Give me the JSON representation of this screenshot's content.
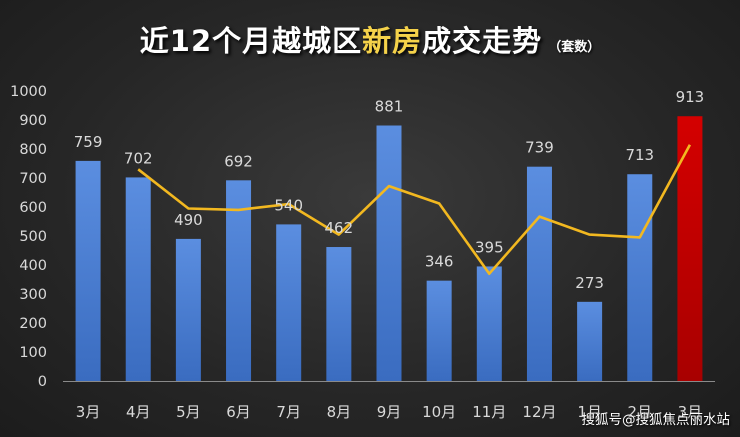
{
  "header": {
    "title_part1": "近12个月越城区",
    "title_highlight": "新房",
    "title_part2": "成交走势",
    "unit": "（套数）"
  },
  "watermark": "搜狐号@搜狐焦点丽水站",
  "colors": {
    "bar": "#4a7fd0",
    "bar_highlight": "#c00000",
    "line": "#f2b820",
    "text": "#d9d9d9"
  },
  "chart_data": {
    "type": "bar",
    "categories": [
      "3月",
      "4月",
      "5月",
      "6月",
      "7月",
      "8月",
      "9月",
      "10月",
      "11月",
      "12月",
      "1月",
      "2月",
      "3月"
    ],
    "series": [
      {
        "values": [
          759,
          702,
          490,
          692,
          540,
          462,
          881,
          346,
          395,
          739,
          273,
          713,
          913
        ]
      }
    ],
    "trend_line": {
      "type": "line",
      "values": [
        null,
        730,
        595,
        590,
        610,
        505,
        672,
        612,
        370,
        567,
        505,
        495,
        815
      ]
    },
    "highlight_index": 12,
    "ylim": [
      0,
      1000
    ],
    "yticks": [
      0,
      100,
      200,
      300,
      400,
      500,
      600,
      700,
      800,
      900,
      1000
    ],
    "data_labels": true,
    "grid": false,
    "legend": "none"
  }
}
